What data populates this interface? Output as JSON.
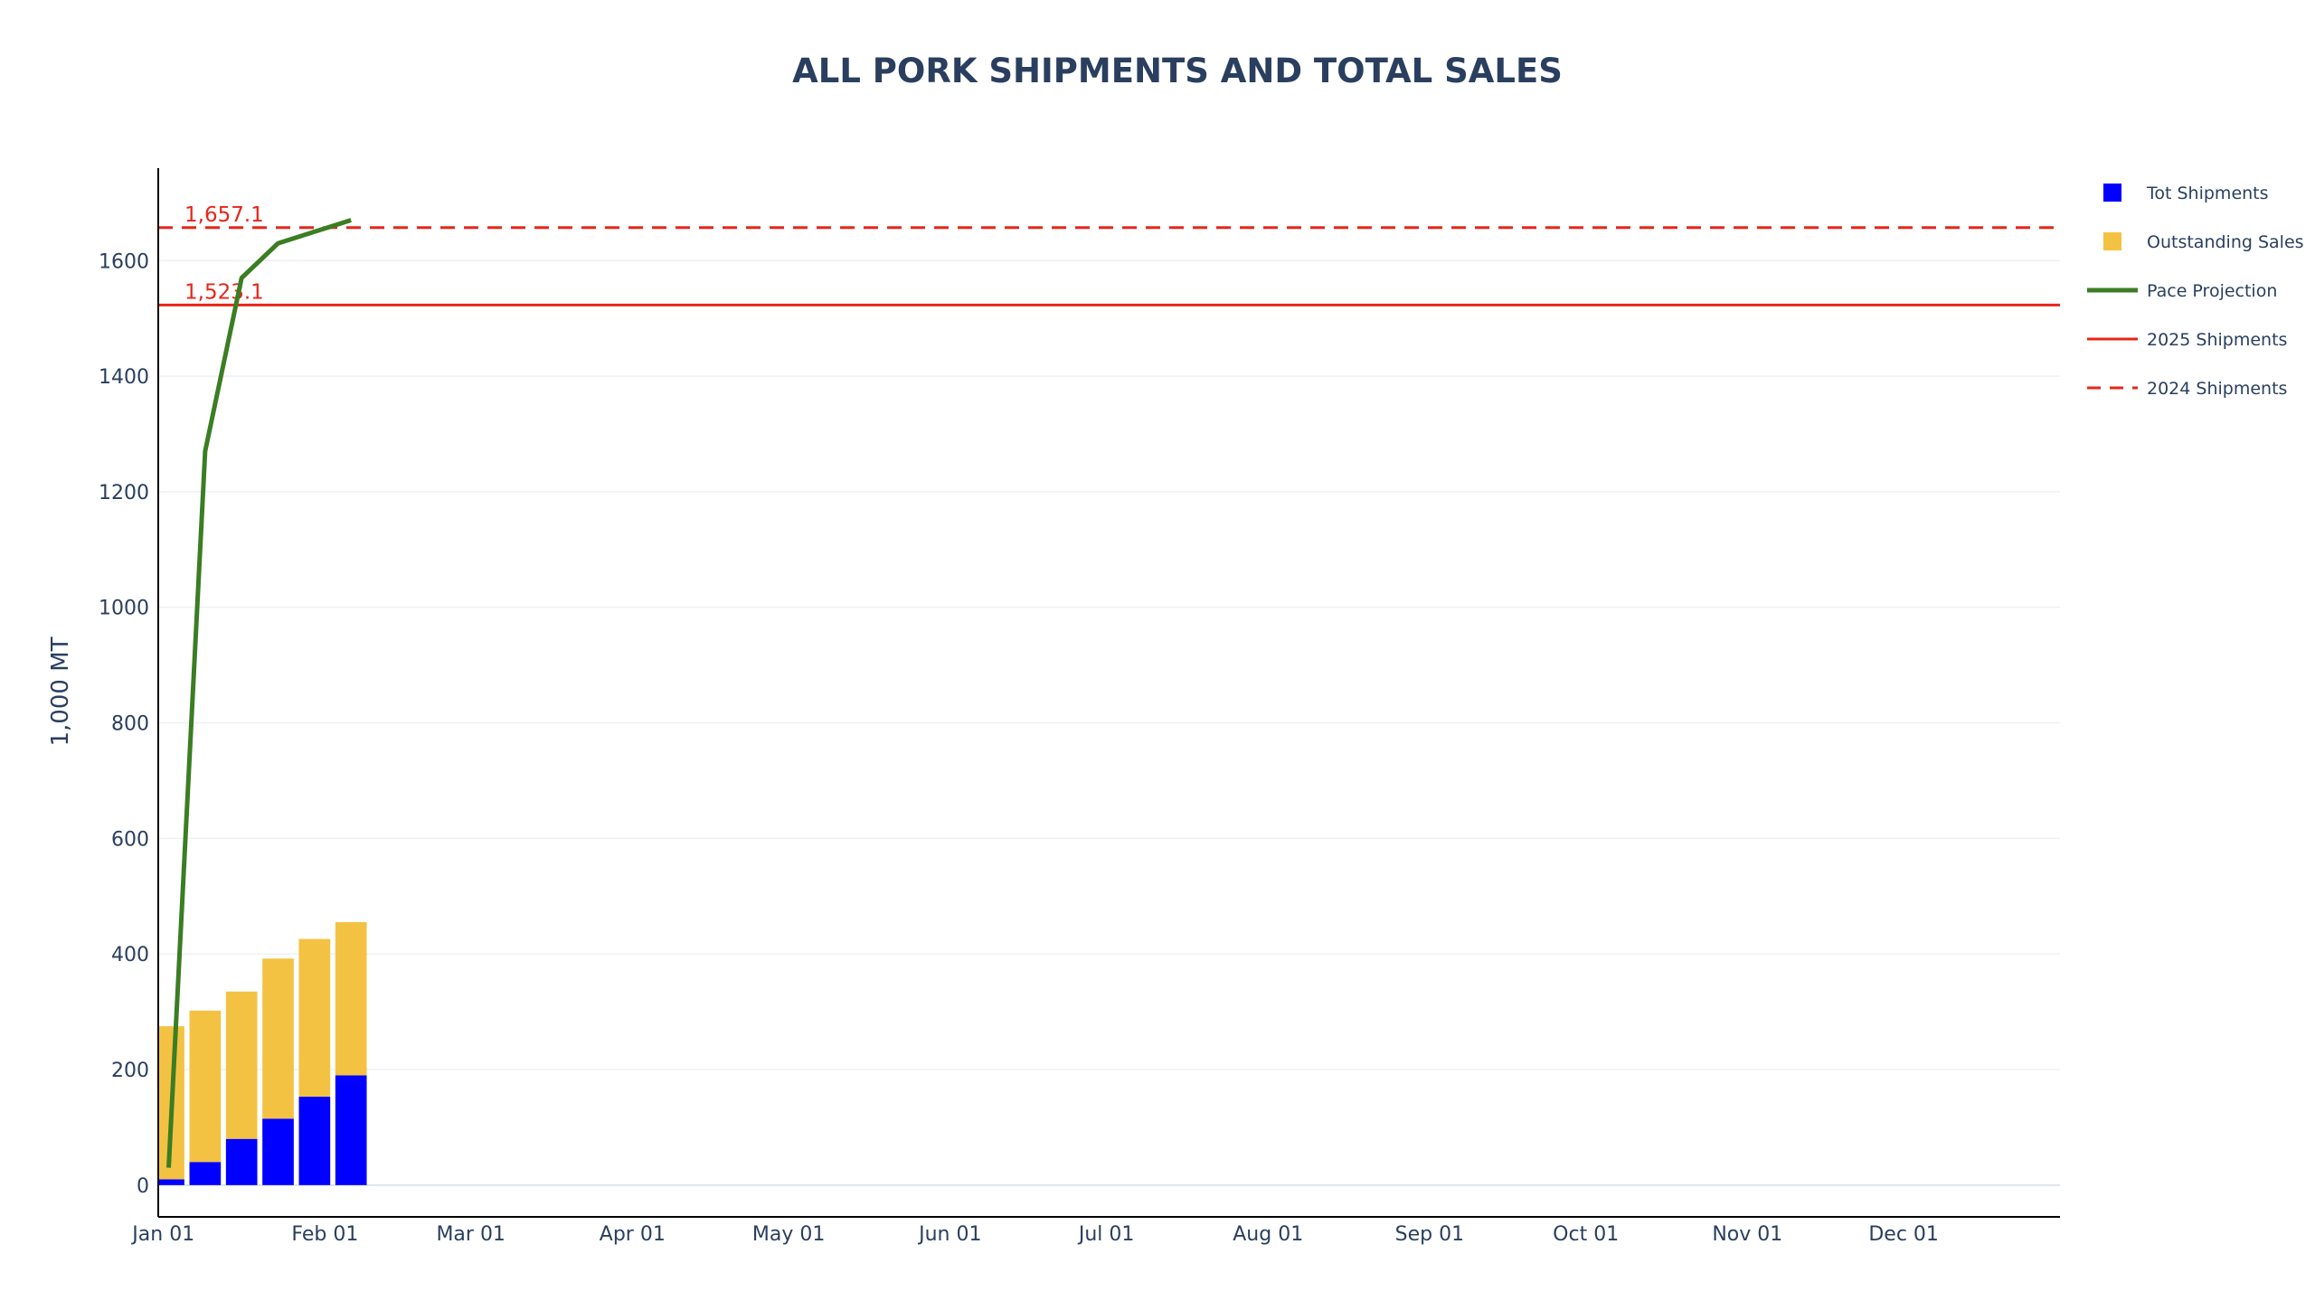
{
  "chart_data": {
    "type": "bar",
    "title": "ALL PORK SHIPMENTS AND TOTAL SALES",
    "xlabel": "",
    "ylabel": "1,000 MT",
    "x_range": [
      "2024-12-31",
      "2025-12-31"
    ],
    "xticks": [
      {
        "date": "2025-01-01",
        "label": "Jan 01"
      },
      {
        "date": "2025-02-01",
        "label": "Feb 01"
      },
      {
        "date": "2025-03-01",
        "label": "Mar 01"
      },
      {
        "date": "2025-04-01",
        "label": "Apr 01"
      },
      {
        "date": "2025-05-01",
        "label": "May 01"
      },
      {
        "date": "2025-06-01",
        "label": "Jun 01"
      },
      {
        "date": "2025-07-01",
        "label": "Jul 01"
      },
      {
        "date": "2025-08-01",
        "label": "Aug 01"
      },
      {
        "date": "2025-09-01",
        "label": "Sep 01"
      },
      {
        "date": "2025-10-01",
        "label": "Oct 01"
      },
      {
        "date": "2025-11-01",
        "label": "Nov 01"
      },
      {
        "date": "2025-12-01",
        "label": "Dec 01"
      }
    ],
    "ylim": [
      -55,
      1760
    ],
    "yticks": [
      0,
      200,
      400,
      600,
      800,
      1000,
      1200,
      1400,
      1600
    ],
    "grid": true,
    "legend_position": "right",
    "dates": [
      "2025-01-02",
      "2025-01-09",
      "2025-01-16",
      "2025-01-23",
      "2025-01-30",
      "2025-02-06"
    ],
    "series": [
      {
        "name": "Tot Shipments",
        "type": "bar",
        "color": "#0000ff",
        "values": [
          10,
          40,
          80,
          115,
          153,
          190
        ]
      },
      {
        "name": "Outstanding Sales",
        "type": "bar",
        "color": "#f4c242",
        "values": [
          265,
          262,
          255,
          277,
          273,
          265
        ]
      },
      {
        "name": "Pace Projection",
        "type": "line",
        "color": "#3b7d23",
        "values": [
          30,
          1270,
          1570,
          1630,
          1650,
          1670
        ]
      }
    ],
    "reference_lines": [
      {
        "name": "2025 Shipments",
        "value": 1523.1,
        "label": "1,523.1",
        "color": "#e8251a",
        "dash": "solid"
      },
      {
        "name": "2024 Shipments",
        "value": 1657.1,
        "label": "1,657.1",
        "color": "#e8251a",
        "dash": "dashed"
      }
    ]
  }
}
